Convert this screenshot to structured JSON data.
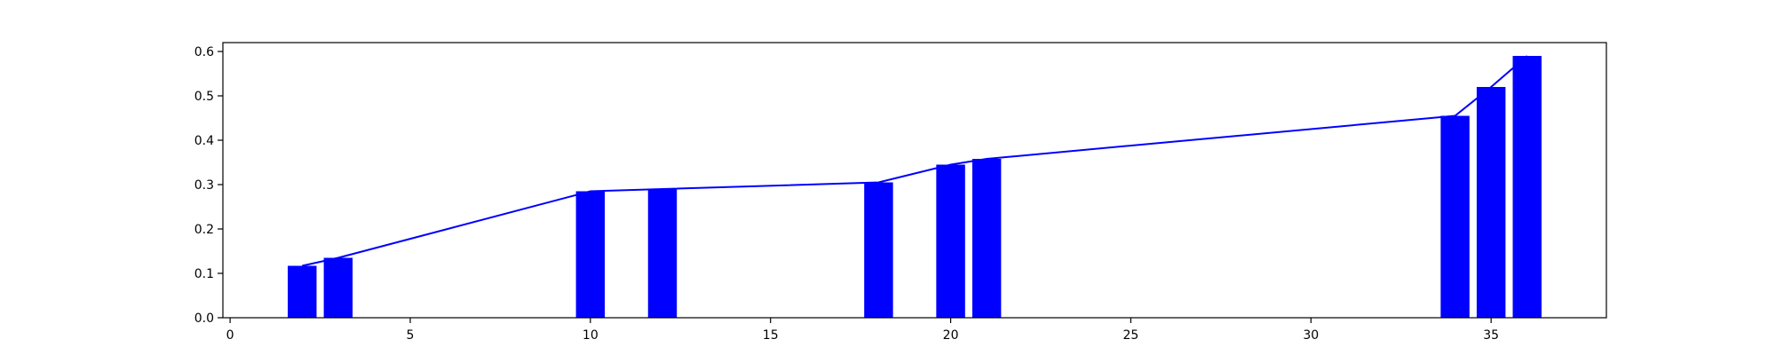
{
  "chart_data": {
    "type": "bar",
    "title": "",
    "xlabel": "",
    "ylabel": "",
    "xlim": [
      -0.2,
      38.2
    ],
    "ylim": [
      0.0,
      0.62
    ],
    "grid": false,
    "legend": "none",
    "x": [
      2,
      3,
      10,
      12,
      18,
      20,
      21,
      34,
      35,
      36
    ],
    "values": [
      0.117,
      0.135,
      0.285,
      0.29,
      0.305,
      0.345,
      0.358,
      0.455,
      0.52,
      0.59
    ],
    "bar_width": 0.8,
    "line_overlay": true,
    "x_ticks": [
      0,
      5,
      10,
      15,
      20,
      25,
      30,
      35
    ],
    "x_tick_labels": [
      "0",
      "5",
      "10",
      "15",
      "20",
      "25",
      "30",
      "35"
    ],
    "y_ticks": [
      0.0,
      0.1,
      0.2,
      0.3,
      0.4,
      0.5,
      0.6
    ],
    "y_tick_labels": [
      "0.0",
      "0.1",
      "0.2",
      "0.3",
      "0.4",
      "0.5",
      "0.6"
    ],
    "colors": {
      "bar": "#0000ff",
      "line": "#0000ff",
      "axis": "#000000"
    }
  }
}
